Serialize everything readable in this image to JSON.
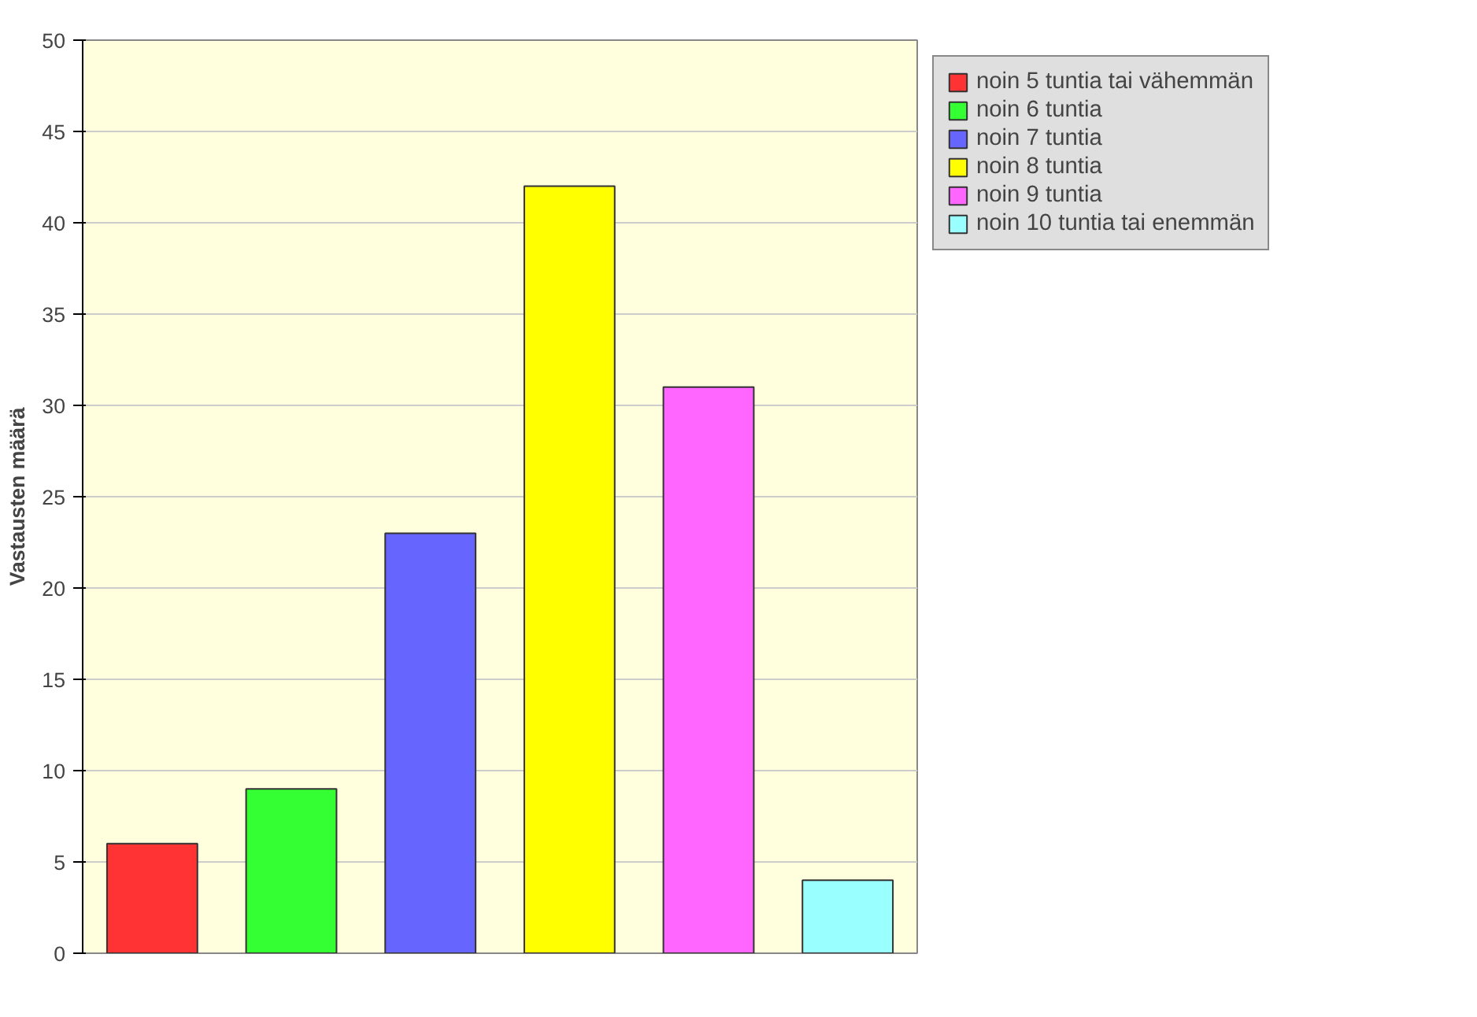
{
  "chart_data": {
    "type": "bar",
    "ylabel": "Vastausten määrä",
    "categories": [
      null,
      null,
      null,
      null,
      null,
      null
    ],
    "series": [
      {
        "name": "noin 5 tuntia tai vähemmän",
        "color": "#ff3333",
        "values": [
          6,
          null,
          null,
          null,
          null,
          null
        ]
      },
      {
        "name": "noin 6 tuntia",
        "color": "#33ff33",
        "values": [
          null,
          9,
          null,
          null,
          null,
          null
        ]
      },
      {
        "name": "noin 7 tuntia",
        "color": "#6666ff",
        "values": [
          null,
          null,
          23,
          null,
          null,
          null
        ]
      },
      {
        "name": "noin 8 tuntia",
        "color": "#ffff00",
        "values": [
          null,
          null,
          null,
          42,
          null,
          null
        ]
      },
      {
        "name": "noin 9 tuntia",
        "color": "#ff66ff",
        "values": [
          null,
          null,
          null,
          null,
          31,
          null
        ]
      },
      {
        "name": "noin 10 tuntia tai enemmän",
        "color": "#99ffff",
        "values": [
          null,
          null,
          null,
          null,
          null,
          4
        ]
      }
    ],
    "ylim": [
      0,
      50
    ],
    "yticks": [
      0,
      5,
      10,
      15,
      20,
      25,
      30,
      35,
      40,
      45,
      50
    ],
    "grid": "y",
    "legend": "top right",
    "tick_labels": "y"
  }
}
